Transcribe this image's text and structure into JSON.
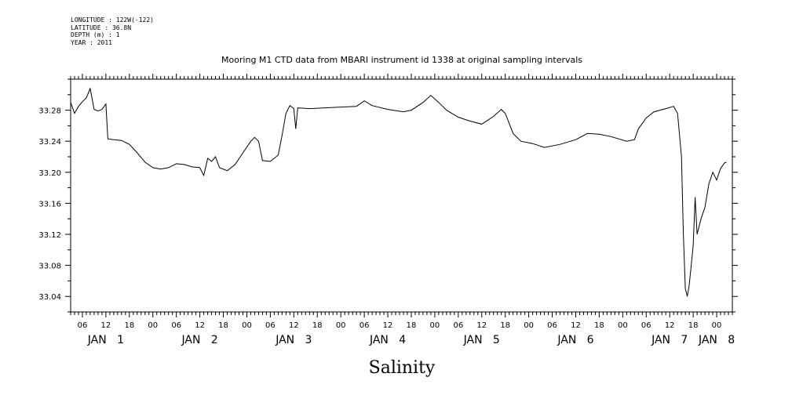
{
  "header": {
    "lines": [
      "LONGITUDE : 122W(-122)",
      "LATITUDE : 36.8N",
      "DEPTH (m) : 1",
      "YEAR : 2011"
    ]
  },
  "chart_data": {
    "type": "line",
    "title": "Mooring M1 CTD data from MBARI instrument id 1338 at original sampling intervals",
    "xlabel": "Salinity",
    "ylabel": "",
    "ylim": [
      33.02,
      33.32
    ],
    "xlim": [
      "2011-01-01T03:00",
      "2011-01-08T04:00"
    ],
    "yticks": [
      "33.04",
      "33.08",
      "33.12",
      "33.16",
      "33.20",
      "33.24",
      "33.28"
    ],
    "ytick_values": [
      33.04,
      33.08,
      33.12,
      33.16,
      33.2,
      33.24,
      33.28
    ],
    "xtick_hours": [
      {
        "t": "2011-01-01T06:00",
        "label": "06"
      },
      {
        "t": "2011-01-01T12:00",
        "label": "12"
      },
      {
        "t": "2011-01-01T18:00",
        "label": "18"
      },
      {
        "t": "2011-01-02T00:00",
        "label": "00"
      },
      {
        "t": "2011-01-02T06:00",
        "label": "06"
      },
      {
        "t": "2011-01-02T12:00",
        "label": "12"
      },
      {
        "t": "2011-01-02T18:00",
        "label": "18"
      },
      {
        "t": "2011-01-03T00:00",
        "label": "00"
      },
      {
        "t": "2011-01-03T06:00",
        "label": "06"
      },
      {
        "t": "2011-01-03T12:00",
        "label": "12"
      },
      {
        "t": "2011-01-03T18:00",
        "label": "18"
      },
      {
        "t": "2011-01-04T00:00",
        "label": "00"
      },
      {
        "t": "2011-01-04T06:00",
        "label": "06"
      },
      {
        "t": "2011-01-04T12:00",
        "label": "12"
      },
      {
        "t": "2011-01-04T18:00",
        "label": "18"
      },
      {
        "t": "2011-01-05T00:00",
        "label": "00"
      },
      {
        "t": "2011-01-05T06:00",
        "label": "06"
      },
      {
        "t": "2011-01-05T12:00",
        "label": "12"
      },
      {
        "t": "2011-01-05T18:00",
        "label": "18"
      },
      {
        "t": "2011-01-06T00:00",
        "label": "00"
      },
      {
        "t": "2011-01-06T06:00",
        "label": "06"
      },
      {
        "t": "2011-01-06T12:00",
        "label": "12"
      },
      {
        "t": "2011-01-06T18:00",
        "label": "18"
      },
      {
        "t": "2011-01-07T00:00",
        "label": "00"
      },
      {
        "t": "2011-01-07T06:00",
        "label": "06"
      },
      {
        "t": "2011-01-07T12:00",
        "label": "12"
      },
      {
        "t": "2011-01-07T18:00",
        "label": "18"
      },
      {
        "t": "2011-01-08T00:00",
        "label": "00"
      }
    ],
    "xtick_days": [
      {
        "t": "2011-01-01T12:00",
        "label": "JAN   1"
      },
      {
        "t": "2011-01-02T12:00",
        "label": "JAN   2"
      },
      {
        "t": "2011-01-03T12:00",
        "label": "JAN   3"
      },
      {
        "t": "2011-01-04T12:00",
        "label": "JAN   4"
      },
      {
        "t": "2011-01-05T12:00",
        "label": "JAN   5"
      },
      {
        "t": "2011-01-06T12:00",
        "label": "JAN   6"
      },
      {
        "t": "2011-01-07T12:00",
        "label": "JAN   7"
      },
      {
        "t": "2011-01-08T00:00",
        "label": "JAN   8"
      }
    ],
    "series": [
      {
        "color": "#000000",
        "points": [
          [
            "2011-01-01T03:00",
            33.29
          ],
          [
            "2011-01-01T04:00",
            33.276
          ],
          [
            "2011-01-01T05:00",
            33.285
          ],
          [
            "2011-01-01T06:00",
            33.291
          ],
          [
            "2011-01-01T07:00",
            33.296
          ],
          [
            "2011-01-01T08:00",
            33.308
          ],
          [
            "2011-01-01T09:00",
            33.281
          ],
          [
            "2011-01-01T10:00",
            33.279
          ],
          [
            "2011-01-01T11:00",
            33.281
          ],
          [
            "2011-01-01T12:00",
            33.288
          ],
          [
            "2011-01-01T12:30",
            33.243
          ],
          [
            "2011-01-01T14:00",
            33.242
          ],
          [
            "2011-01-01T16:00",
            33.241
          ],
          [
            "2011-01-01T18:00",
            33.236
          ],
          [
            "2011-01-01T20:00",
            33.225
          ],
          [
            "2011-01-01T22:00",
            33.213
          ],
          [
            "2011-01-02T00:00",
            33.206
          ],
          [
            "2011-01-02T02:00",
            33.204
          ],
          [
            "2011-01-02T04:00",
            33.206
          ],
          [
            "2011-01-02T06:00",
            33.211
          ],
          [
            "2011-01-02T08:00",
            33.21
          ],
          [
            "2011-01-02T10:00",
            33.207
          ],
          [
            "2011-01-02T12:00",
            33.206
          ],
          [
            "2011-01-02T13:00",
            33.196
          ],
          [
            "2011-01-02T14:00",
            33.218
          ],
          [
            "2011-01-02T15:00",
            33.214
          ],
          [
            "2011-01-02T16:00",
            33.22
          ],
          [
            "2011-01-02T17:00",
            33.206
          ],
          [
            "2011-01-02T19:00",
            33.202
          ],
          [
            "2011-01-02T21:00",
            33.21
          ],
          [
            "2011-01-02T23:00",
            33.225
          ],
          [
            "2011-01-03T01:00",
            33.24
          ],
          [
            "2011-01-03T02:00",
            33.245
          ],
          [
            "2011-01-03T03:00",
            33.24
          ],
          [
            "2011-01-03T04:00",
            33.215
          ],
          [
            "2011-01-03T06:00",
            33.214
          ],
          [
            "2011-01-03T08:00",
            33.222
          ],
          [
            "2011-01-03T09:00",
            33.248
          ],
          [
            "2011-01-03T10:00",
            33.276
          ],
          [
            "2011-01-03T11:00",
            33.286
          ],
          [
            "2011-01-03T12:00",
            33.282
          ],
          [
            "2011-01-03T12:30",
            33.256
          ],
          [
            "2011-01-03T13:00",
            33.283
          ],
          [
            "2011-01-03T16:00",
            33.282
          ],
          [
            "2011-01-03T20:00",
            33.283
          ],
          [
            "2011-01-04T00:00",
            33.284
          ],
          [
            "2011-01-04T04:00",
            33.285
          ],
          [
            "2011-01-04T06:00",
            33.292
          ],
          [
            "2011-01-04T08:00",
            33.286
          ],
          [
            "2011-01-04T12:00",
            33.281
          ],
          [
            "2011-01-04T16:00",
            33.278
          ],
          [
            "2011-01-04T18:00",
            33.28
          ],
          [
            "2011-01-04T21:00",
            33.29
          ],
          [
            "2011-01-04T23:00",
            33.299
          ],
          [
            "2011-01-05T01:00",
            33.29
          ],
          [
            "2011-01-05T03:00",
            33.28
          ],
          [
            "2011-01-05T06:00",
            33.271
          ],
          [
            "2011-01-05T09:00",
            33.266
          ],
          [
            "2011-01-05T12:00",
            33.262
          ],
          [
            "2011-01-05T15:00",
            33.272
          ],
          [
            "2011-01-05T17:00",
            33.281
          ],
          [
            "2011-01-05T18:00",
            33.276
          ],
          [
            "2011-01-05T20:00",
            33.25
          ],
          [
            "2011-01-05T22:00",
            33.24
          ],
          [
            "2011-01-06T01:00",
            33.237
          ],
          [
            "2011-01-06T04:00",
            33.232
          ],
          [
            "2011-01-06T08:00",
            33.236
          ],
          [
            "2011-01-06T12:00",
            33.242
          ],
          [
            "2011-01-06T15:00",
            33.25
          ],
          [
            "2011-01-06T18:00",
            33.249
          ],
          [
            "2011-01-06T21:00",
            33.246
          ],
          [
            "2011-01-07T01:00",
            33.24
          ],
          [
            "2011-01-07T03:00",
            33.242
          ],
          [
            "2011-01-07T04:00",
            33.256
          ],
          [
            "2011-01-07T05:00",
            33.263
          ],
          [
            "2011-01-07T06:00",
            33.27
          ],
          [
            "2011-01-07T08:00",
            33.278
          ],
          [
            "2011-01-07T11:00",
            33.282
          ],
          [
            "2011-01-07T13:00",
            33.285
          ],
          [
            "2011-01-07T14:00",
            33.276
          ],
          [
            "2011-01-07T15:00",
            33.22
          ],
          [
            "2011-01-07T15:30",
            33.12
          ],
          [
            "2011-01-07T16:00",
            33.05
          ],
          [
            "2011-01-07T16:30",
            33.04
          ],
          [
            "2011-01-07T17:00",
            33.055
          ],
          [
            "2011-01-07T18:00",
            33.105
          ],
          [
            "2011-01-07T18:30",
            33.168
          ],
          [
            "2011-01-07T19:00",
            33.12
          ],
          [
            "2011-01-07T20:00",
            33.14
          ],
          [
            "2011-01-07T21:00",
            33.155
          ],
          [
            "2011-01-07T22:00",
            33.185
          ],
          [
            "2011-01-07T23:00",
            33.2
          ],
          [
            "2011-01-08T00:00",
            33.19
          ],
          [
            "2011-01-08T01:00",
            33.205
          ],
          [
            "2011-01-08T02:00",
            33.212
          ],
          [
            "2011-01-08T02:30",
            33.213
          ]
        ]
      }
    ]
  }
}
